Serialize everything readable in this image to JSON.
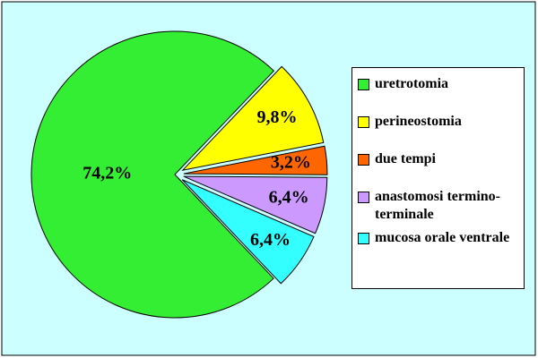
{
  "chart_data": {
    "type": "pie",
    "categories": [
      "uretrotomia",
      "perineostomia",
      "due tempi",
      "anastomosi termino-terminale",
      "mucosa orale ventrale"
    ],
    "values": [
      74.2,
      9.8,
      3.2,
      6.4,
      6.4
    ],
    "value_labels": [
      "74,2%",
      "9,8%",
      "3,2%",
      "6,4%",
      "6,4%"
    ],
    "colors": [
      "#33ee33",
      "#ffff00",
      "#ff6600",
      "#cc99ff",
      "#33ffff"
    ],
    "legend": "right"
  }
}
